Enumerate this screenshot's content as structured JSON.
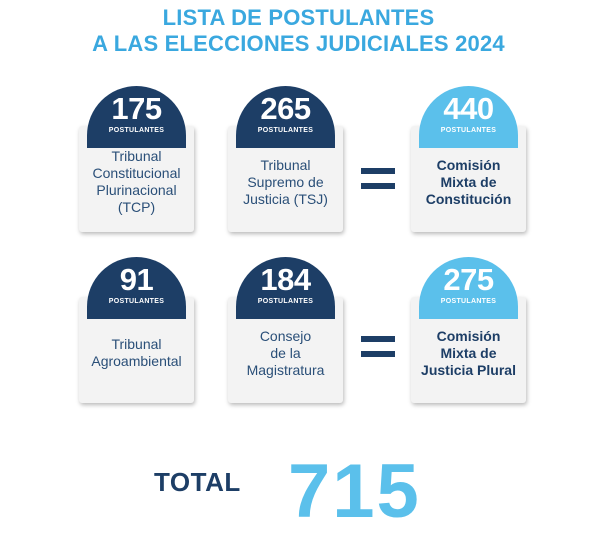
{
  "header": {
    "title_line1": "LISTA DE POSTULANTES",
    "title_line2": "A LAS ELECCIONES JUDICIALES 2024"
  },
  "row1": {
    "card1": {
      "number": "175",
      "label": "POSTULANTES",
      "line1": "Tribunal",
      "line2": "Constitucional",
      "line3": "Plurinacional",
      "line4": "(TCP)"
    },
    "card2": {
      "number": "265",
      "label": "POSTULANTES",
      "line1": "Tribunal",
      "line2": "Supremo de",
      "line3": "Justicia (TSJ)"
    },
    "result": {
      "number": "440",
      "label": "POSTULANTES",
      "line1": "Comisión",
      "line2": "Mixta de",
      "line3": "Constitución"
    }
  },
  "row2": {
    "card1": {
      "number": "91",
      "label": "POSTULANTES",
      "line1": "Tribunal",
      "line2": "Agroambiental"
    },
    "card2": {
      "number": "184",
      "label": "POSTULANTES",
      "line1": "Consejo",
      "line2": "de la",
      "line3": "Magistratura"
    },
    "result": {
      "number": "275",
      "label": "POSTULANTES",
      "line1": "Comisión",
      "line2": "Mixta de",
      "line3": "Justicia Plural"
    }
  },
  "total": {
    "label": "TOTAL",
    "value": "715"
  },
  "colors": {
    "dark_blue": "#1d3e66",
    "light_blue": "#5bc0eb",
    "title_blue": "#3aa8df"
  }
}
